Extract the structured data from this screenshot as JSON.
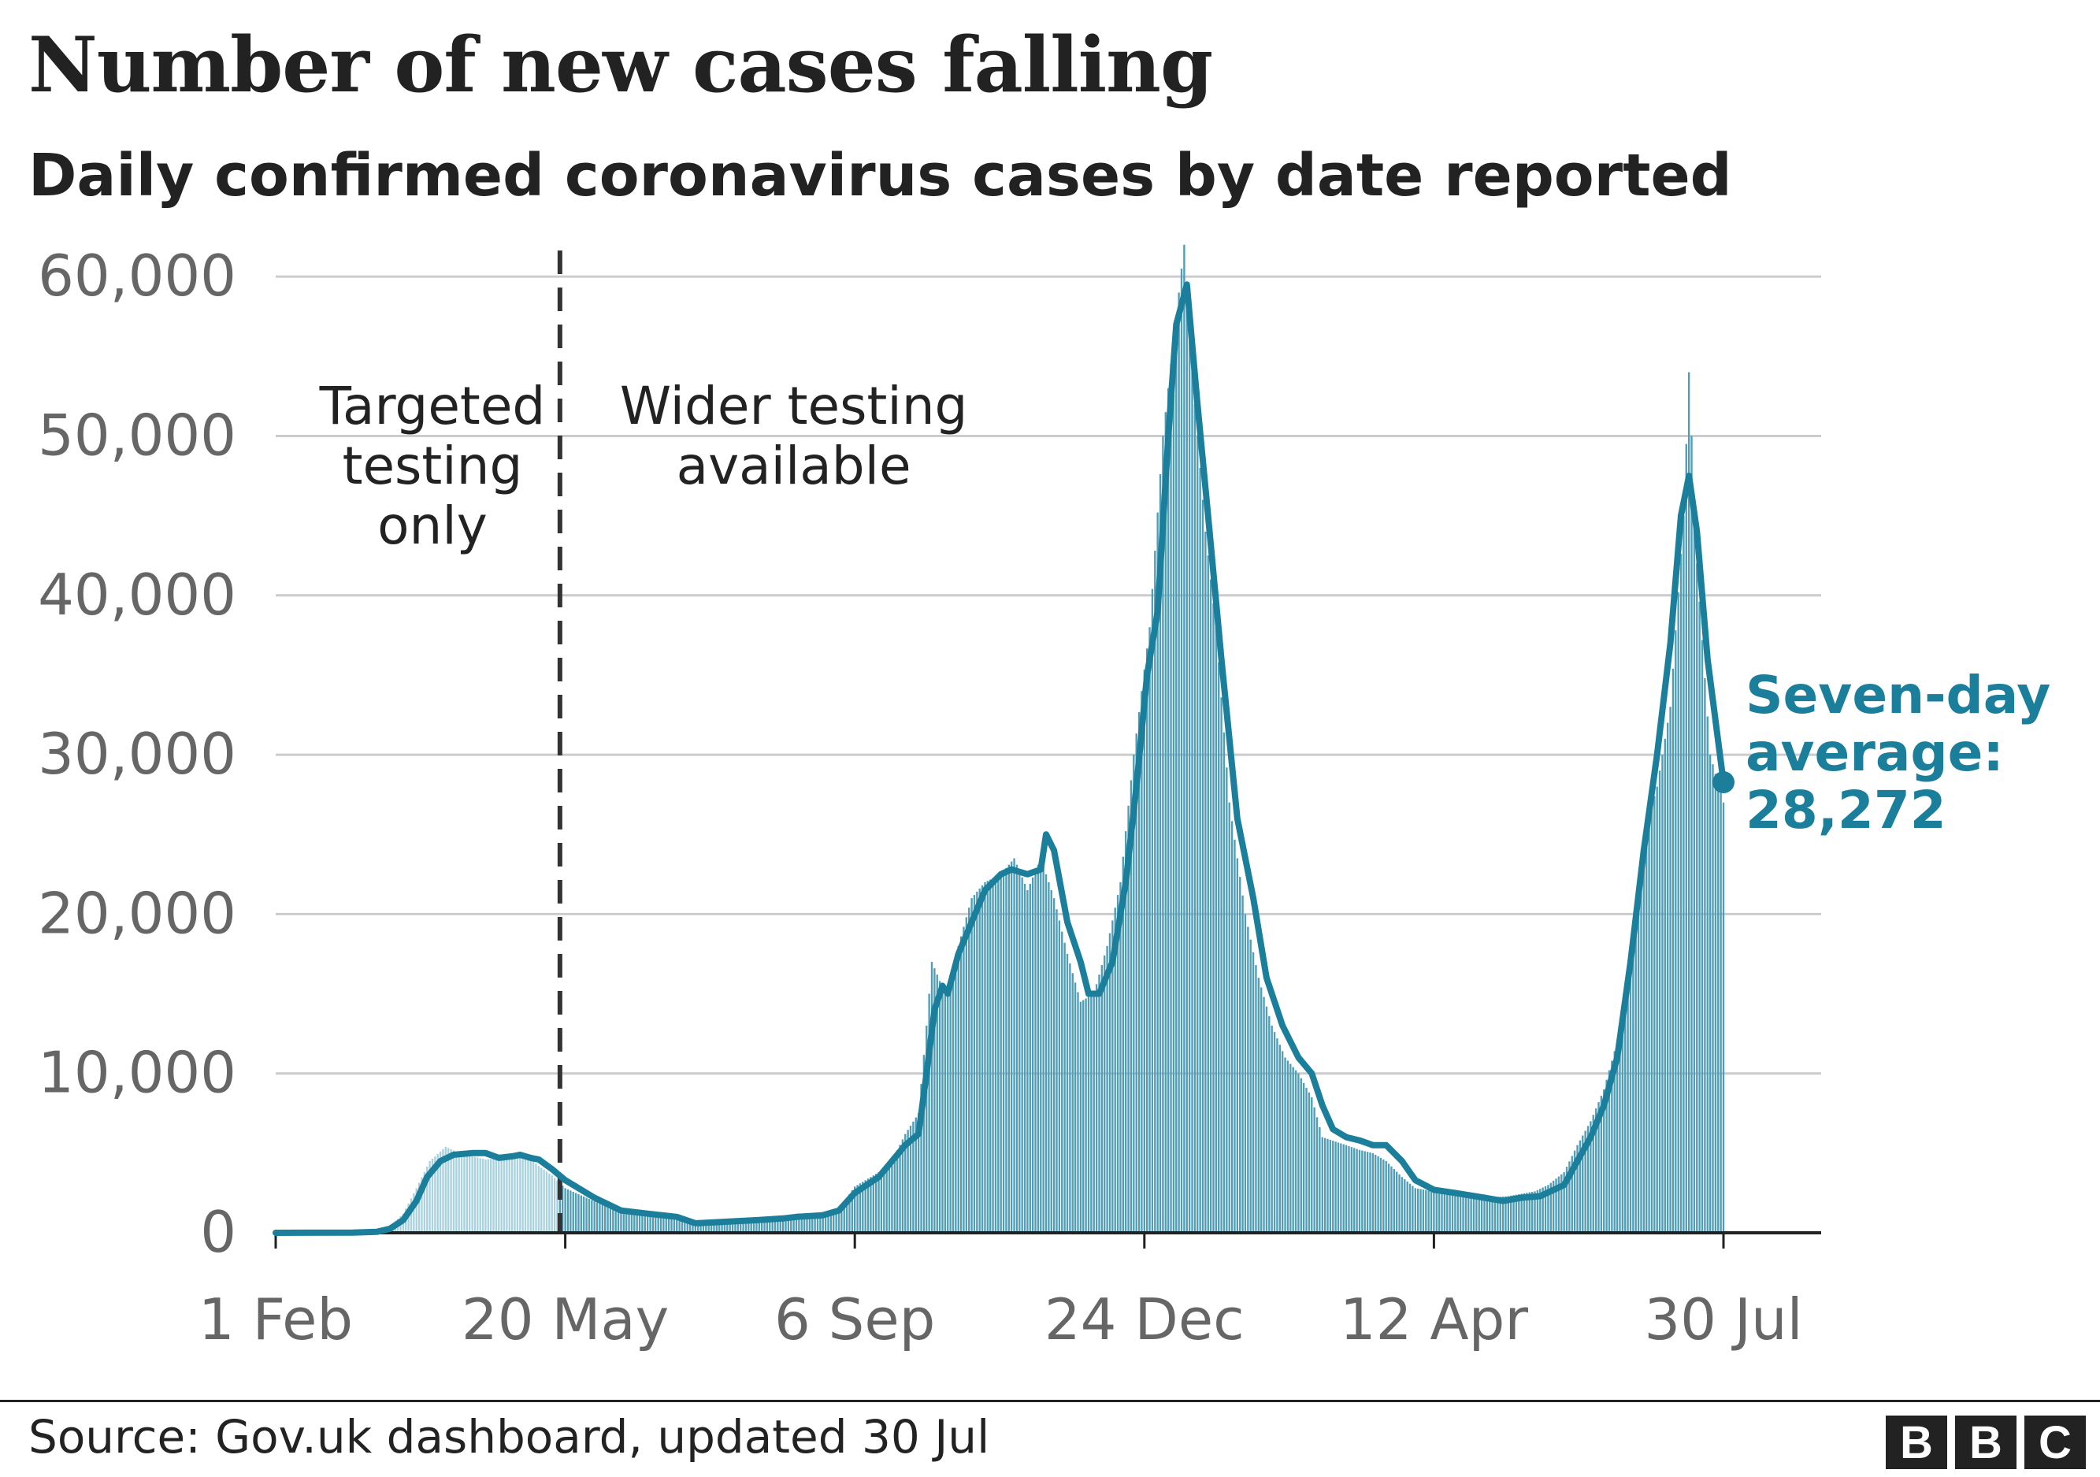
{
  "title": "Number of new cases falling",
  "subtitle": "Daily confirmed coronavirus cases by date reported",
  "source": "Source: Gov.uk dashboard, updated 30 Jul",
  "logo": [
    "B",
    "B",
    "C"
  ],
  "colors": {
    "average_line": "#1b7f9c",
    "bars_after": "#4f9db7",
    "bars_before": "#a9d2df",
    "grid": "#cccccc",
    "axis": "#222222",
    "tick_text": "#666666",
    "annotation_text": "#222222",
    "callout_text": "#1b7f9c"
  },
  "chart_data": {
    "type": "bar",
    "title": "Number of new cases falling",
    "subtitle": "Daily confirmed coronavirus cases by date reported",
    "xlabel": "",
    "ylabel": "",
    "x_range": [
      "2020-02-01",
      "2021-07-30"
    ],
    "ylim": [
      0,
      65000
    ],
    "yticks": [
      0,
      10000,
      20000,
      30000,
      40000,
      50000,
      60000
    ],
    "ytick_labels": [
      "0",
      "10,000",
      "20,000",
      "30,000",
      "40,000",
      "50,000",
      "60,000"
    ],
    "xticks": [
      "2020-02-01",
      "2020-05-20",
      "2020-09-06",
      "2020-12-24",
      "2021-04-12",
      "2021-07-30"
    ],
    "xtick_labels": [
      "1 Feb",
      "20 May",
      "6 Sep",
      "24 Dec",
      "12 Apr",
      "30 Jul"
    ],
    "grid": true,
    "divider_date": "2020-05-18",
    "annotations": [
      {
        "text": [
          "Targeted",
          "testing",
          "only"
        ],
        "date": "2020-03-31",
        "value": 56000
      },
      {
        "text": [
          "Wider testing",
          "available"
        ],
        "date": "2020-08-14",
        "value": 56000
      }
    ],
    "series": [
      {
        "kind": "daily_bars",
        "points": [
          [
            "2020-02-01",
            0
          ],
          [
            "2020-03-01",
            20
          ],
          [
            "2020-03-10",
            100
          ],
          [
            "2020-03-15",
            400
          ],
          [
            "2020-03-20",
            1200
          ],
          [
            "2020-03-25",
            2800
          ],
          [
            "2020-03-30",
            4500
          ],
          [
            "2020-04-05",
            5400
          ],
          [
            "2020-04-10",
            5000
          ],
          [
            "2020-04-15",
            4800
          ],
          [
            "2020-04-20",
            4600
          ],
          [
            "2020-04-25",
            4700
          ],
          [
            "2020-05-01",
            5000
          ],
          [
            "2020-05-05",
            4900
          ],
          [
            "2020-05-10",
            4200
          ],
          [
            "2020-05-15",
            3600
          ],
          [
            "2020-05-20",
            2800
          ],
          [
            "2020-06-01",
            1900
          ],
          [
            "2020-06-15",
            1200
          ],
          [
            "2020-07-01",
            800
          ],
          [
            "2020-07-15",
            650
          ],
          [
            "2020-08-01",
            750
          ],
          [
            "2020-08-15",
            1000
          ],
          [
            "2020-08-31",
            1500
          ],
          [
            "2020-09-06",
            2900
          ],
          [
            "2020-09-15",
            3800
          ],
          [
            "2020-09-20",
            4500
          ],
          [
            "2020-09-25",
            6200
          ],
          [
            "2020-09-30",
            7500
          ],
          [
            "2020-10-03",
            13000
          ],
          [
            "2020-10-05",
            17000
          ],
          [
            "2020-10-10",
            15000
          ],
          [
            "2020-10-15",
            18000
          ],
          [
            "2020-10-20",
            21000
          ],
          [
            "2020-10-25",
            22000
          ],
          [
            "2020-10-31",
            22500
          ],
          [
            "2020-11-05",
            23500
          ],
          [
            "2020-11-10",
            21500
          ],
          [
            "2020-11-15",
            23500
          ],
          [
            "2020-11-20",
            21000
          ],
          [
            "2020-11-25",
            17500
          ],
          [
            "2020-11-30",
            14500
          ],
          [
            "2020-12-05",
            15000
          ],
          [
            "2020-12-10",
            18000
          ],
          [
            "2020-12-15",
            22000
          ],
          [
            "2020-12-20",
            30000
          ],
          [
            "2020-12-26",
            38000
          ],
          [
            "2020-12-31",
            50000
          ],
          [
            "2021-01-04",
            56000
          ],
          [
            "2021-01-08",
            62000
          ],
          [
            "2021-01-12",
            52000
          ],
          [
            "2021-01-16",
            44000
          ],
          [
            "2021-01-20",
            38000
          ],
          [
            "2021-01-25",
            27000
          ],
          [
            "2021-01-31",
            20000
          ],
          [
            "2021-02-05",
            16000
          ],
          [
            "2021-02-10",
            13000
          ],
          [
            "2021-02-15",
            11000
          ],
          [
            "2021-02-20",
            10000
          ],
          [
            "2021-02-25",
            8500
          ],
          [
            "2021-03-01",
            6000
          ],
          [
            "2021-03-10",
            5500
          ],
          [
            "2021-03-15",
            5200
          ],
          [
            "2021-03-20",
            5000
          ],
          [
            "2021-03-25",
            4500
          ],
          [
            "2021-03-31",
            3500
          ],
          [
            "2021-04-05",
            2800
          ],
          [
            "2021-04-12",
            2600
          ],
          [
            "2021-04-20",
            2500
          ],
          [
            "2021-05-01",
            2200
          ],
          [
            "2021-05-10",
            2300
          ],
          [
            "2021-05-20",
            2600
          ],
          [
            "2021-05-25",
            3000
          ],
          [
            "2021-05-31",
            3800
          ],
          [
            "2021-06-05",
            5500
          ],
          [
            "2021-06-10",
            7000
          ],
          [
            "2021-06-15",
            9000
          ],
          [
            "2021-06-20",
            12000
          ],
          [
            "2021-06-25",
            17000
          ],
          [
            "2021-06-30",
            25000
          ],
          [
            "2021-07-05",
            28000
          ],
          [
            "2021-07-10",
            33000
          ],
          [
            "2021-07-15",
            45000
          ],
          [
            "2021-07-17",
            54000
          ],
          [
            "2021-07-20",
            42000
          ],
          [
            "2021-07-25",
            30000
          ],
          [
            "2021-07-30",
            27000
          ]
        ]
      },
      {
        "kind": "seven_day_average",
        "points": [
          [
            "2020-02-01",
            0
          ],
          [
            "2020-03-01",
            10
          ],
          [
            "2020-03-10",
            60
          ],
          [
            "2020-03-15",
            250
          ],
          [
            "2020-03-20",
            800
          ],
          [
            "2020-03-25",
            2000
          ],
          [
            "2020-03-29",
            3500
          ],
          [
            "2020-04-03",
            4500
          ],
          [
            "2020-04-08",
            4900
          ],
          [
            "2020-04-15",
            5000
          ],
          [
            "2020-04-20",
            5000
          ],
          [
            "2020-04-25",
            4700
          ],
          [
            "2020-04-30",
            4800
          ],
          [
            "2020-05-03",
            4900
          ],
          [
            "2020-05-07",
            4700
          ],
          [
            "2020-05-10",
            4600
          ],
          [
            "2020-05-15",
            4000
          ],
          [
            "2020-05-20",
            3300
          ],
          [
            "2020-05-31",
            2200
          ],
          [
            "2020-06-10",
            1400
          ],
          [
            "2020-06-20",
            1200
          ],
          [
            "2020-07-01",
            1000
          ],
          [
            "2020-07-08",
            600
          ],
          [
            "2020-07-15",
            650
          ],
          [
            "2020-08-01",
            800
          ],
          [
            "2020-08-10",
            900
          ],
          [
            "2020-08-15",
            1000
          ],
          [
            "2020-08-25",
            1100
          ],
          [
            "2020-08-31",
            1400
          ],
          [
            "2020-09-06",
            2500
          ],
          [
            "2020-09-15",
            3500
          ],
          [
            "2020-09-20",
            4500
          ],
          [
            "2020-09-25",
            5500
          ],
          [
            "2020-09-30",
            6200
          ],
          [
            "2020-10-03",
            10000
          ],
          [
            "2020-10-06",
            14000
          ],
          [
            "2020-10-09",
            15500
          ],
          [
            "2020-10-11",
            15000
          ],
          [
            "2020-10-15",
            17500
          ],
          [
            "2020-10-20",
            19500
          ],
          [
            "2020-10-25",
            21500
          ],
          [
            "2020-10-31",
            22500
          ],
          [
            "2020-11-04",
            22800
          ],
          [
            "2020-11-10",
            22500
          ],
          [
            "2020-11-15",
            22800
          ],
          [
            "2020-11-17",
            25000
          ],
          [
            "2020-11-20",
            24000
          ],
          [
            "2020-11-25",
            19500
          ],
          [
            "2020-11-30",
            17000
          ],
          [
            "2020-12-03",
            15000
          ],
          [
            "2020-12-07",
            15000
          ],
          [
            "2020-12-12",
            17000
          ],
          [
            "2020-12-17",
            22000
          ],
          [
            "2020-12-21",
            28000
          ],
          [
            "2020-12-25",
            35000
          ],
          [
            "2020-12-29",
            39000
          ],
          [
            "2021-01-02",
            50000
          ],
          [
            "2021-01-05",
            57000
          ],
          [
            "2021-01-09",
            59500
          ],
          [
            "2021-01-13",
            52000
          ],
          [
            "2021-01-17",
            45000
          ],
          [
            "2021-01-22",
            36000
          ],
          [
            "2021-01-28",
            26000
          ],
          [
            "2021-02-03",
            21000
          ],
          [
            "2021-02-08",
            16000
          ],
          [
            "2021-02-14",
            13000
          ],
          [
            "2021-02-20",
            11000
          ],
          [
            "2021-02-25",
            10000
          ],
          [
            "2021-03-01",
            8000
          ],
          [
            "2021-03-05",
            6500
          ],
          [
            "2021-03-10",
            6000
          ],
          [
            "2021-03-15",
            5800
          ],
          [
            "2021-03-20",
            5500
          ],
          [
            "2021-03-25",
            5500
          ],
          [
            "2021-03-31",
            4500
          ],
          [
            "2021-04-05",
            3300
          ],
          [
            "2021-04-12",
            2700
          ],
          [
            "2021-04-20",
            2500
          ],
          [
            "2021-05-01",
            2200
          ],
          [
            "2021-05-08",
            2000
          ],
          [
            "2021-05-15",
            2200
          ],
          [
            "2021-05-22",
            2300
          ],
          [
            "2021-05-31",
            3000
          ],
          [
            "2021-06-05",
            4500
          ],
          [
            "2021-06-10",
            6000
          ],
          [
            "2021-06-15",
            8000
          ],
          [
            "2021-06-20",
            11000
          ],
          [
            "2021-06-25",
            17000
          ],
          [
            "2021-06-30",
            24000
          ],
          [
            "2021-07-05",
            30000
          ],
          [
            "2021-07-10",
            37000
          ],
          [
            "2021-07-14",
            45000
          ],
          [
            "2021-07-17",
            47500
          ],
          [
            "2021-07-20",
            44000
          ],
          [
            "2021-07-24",
            36000
          ],
          [
            "2021-07-30",
            28272
          ]
        ]
      }
    ],
    "callout": {
      "lines": [
        "Seven-day",
        "average:",
        "28,272"
      ],
      "date": "2021-07-30",
      "value": 28272
    }
  }
}
